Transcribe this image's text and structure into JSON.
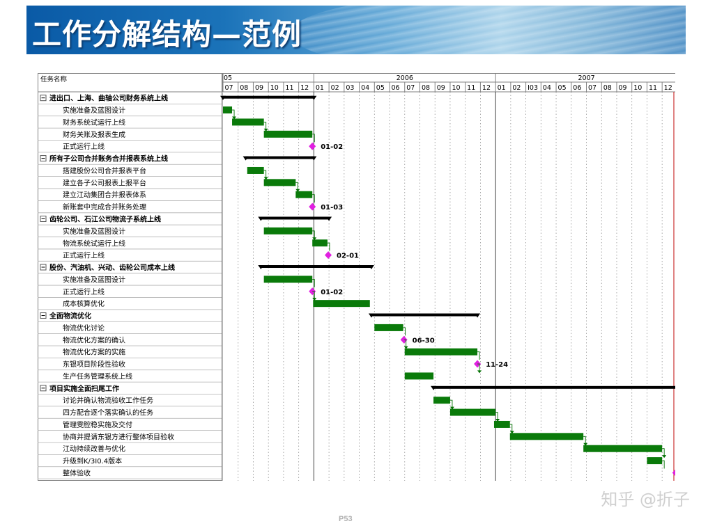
{
  "title": "工作分解结构—范例",
  "task_header": "任务名称",
  "years": [
    "05",
    "2006",
    "2007"
  ],
  "months": [
    "07",
    "08",
    "09",
    "10",
    "11",
    "12",
    "01",
    "02",
    "03",
    "04",
    "05",
    "06",
    "07",
    "08",
    "09",
    "10",
    "11",
    "12",
    "01",
    "02",
    "I03",
    "04",
    "05",
    "06",
    "07",
    "08",
    "09",
    "10",
    "11",
    "12"
  ],
  "groups": [
    {
      "name": "进出口、上海、曲轴公司财务系统上线",
      "start": 0,
      "end": 6.0,
      "tasks": [
        {
          "name": "实施准备及蓝图设计",
          "type": "bar",
          "start": 0.0,
          "end": 0.6
        },
        {
          "name": "财务系统试运行上线",
          "type": "bar",
          "start": 0.6,
          "end": 2.7
        },
        {
          "name": "财务关账及报表生成",
          "type": "bar",
          "start": 2.7,
          "end": 5.9
        },
        {
          "name": "正式运行上线",
          "type": "milestone",
          "at": 5.9,
          "label": "01-02"
        }
      ]
    },
    {
      "name": "所有子公司合并账务合并报表系统上线",
      "start": 1.5,
      "end": 6.0,
      "tasks": [
        {
          "name": "搭建股份公司合并报表平台",
          "type": "bar",
          "start": 1.6,
          "end": 2.7
        },
        {
          "name": "建立各子公司报表上报平台",
          "type": "bar",
          "start": 2.7,
          "end": 4.8
        },
        {
          "name": "建立江动集团合并报表体系",
          "type": "bar",
          "start": 4.8,
          "end": 5.9
        },
        {
          "name": "新账套中完成合并账务处理",
          "type": "milestone",
          "at": 5.9,
          "label": "01-03"
        }
      ]
    },
    {
      "name": "齿轮公司、石江公司物流子系统上线",
      "start": 2.5,
      "end": 7.0,
      "tasks": [
        {
          "name": "实施准备及蓝图设计",
          "type": "bar",
          "start": 2.7,
          "end": 5.9
        },
        {
          "name": "物流系统试运行上线",
          "type": "bar",
          "start": 5.9,
          "end": 6.9
        },
        {
          "name": "正式运行上线",
          "type": "milestone",
          "at": 6.95,
          "label": "02-01"
        }
      ]
    },
    {
      "name": "股份、汽油机、兴动、齿轮公司成本上线",
      "start": 2.5,
      "end": 9.8,
      "tasks": [
        {
          "name": "实施准备及蓝图设计",
          "type": "bar",
          "start": 2.7,
          "end": 5.9
        },
        {
          "name": "正式运行上线",
          "type": "milestone",
          "at": 5.9,
          "label": "01-02"
        },
        {
          "name": "成本核算优化",
          "type": "bar",
          "start": 5.95,
          "end": 9.7
        }
      ]
    },
    {
      "name": "全面物流优化",
      "start": 9.8,
      "end": 16.8,
      "tasks": [
        {
          "name": "物流优化讨论",
          "type": "bar",
          "start": 10.0,
          "end": 11.9
        },
        {
          "name": "物流优化方案的确认",
          "type": "milestone",
          "at": 11.95,
          "label": "06-30"
        },
        {
          "name": "物流优化方案的实施",
          "type": "bar",
          "start": 12.0,
          "end": 16.8
        },
        {
          "name": "东银项目阶段性验收",
          "type": "milestone",
          "at": 16.8,
          "label": "11-24"
        },
        {
          "name": "生产任务管理系统上线",
          "type": "bar",
          "start": 12.0,
          "end": 13.9
        }
      ]
    },
    {
      "name": "项目实施全面扫尾工作",
      "start": 13.9,
      "end": 30.0,
      "tasks": [
        {
          "name": "讨论并确认物流验收工作任务",
          "type": "bar",
          "start": 13.9,
          "end": 15.0
        },
        {
          "name": "四方配合逐个落实确认的任务",
          "type": "bar",
          "start": 15.0,
          "end": 18.0
        },
        {
          "name": "管理雯腔稳实施及交付",
          "type": "bar",
          "start": 17.9,
          "end": 18.95
        },
        {
          "name": "协商并提请东银方进行整体项目验收",
          "type": "bar",
          "start": 18.95,
          "end": 23.8
        },
        {
          "name": "江动持续改善与优化",
          "type": "bar",
          "start": 23.8,
          "end": 29.0
        },
        {
          "name": "升级到K/3I0.4版本",
          "type": "bar",
          "start": 28.0,
          "end": 29.0
        },
        {
          "name": "整体验收",
          "type": "milestone",
          "at": 29.9,
          "label": ""
        }
      ]
    }
  ],
  "colors": {
    "bar": "#0a7a0a",
    "summary": "#000000",
    "milestone": "#e020e0",
    "arrow": "#007000",
    "today_line": "#cc3333"
  },
  "watermark": "知乎 @折子",
  "page_number": "P53"
}
